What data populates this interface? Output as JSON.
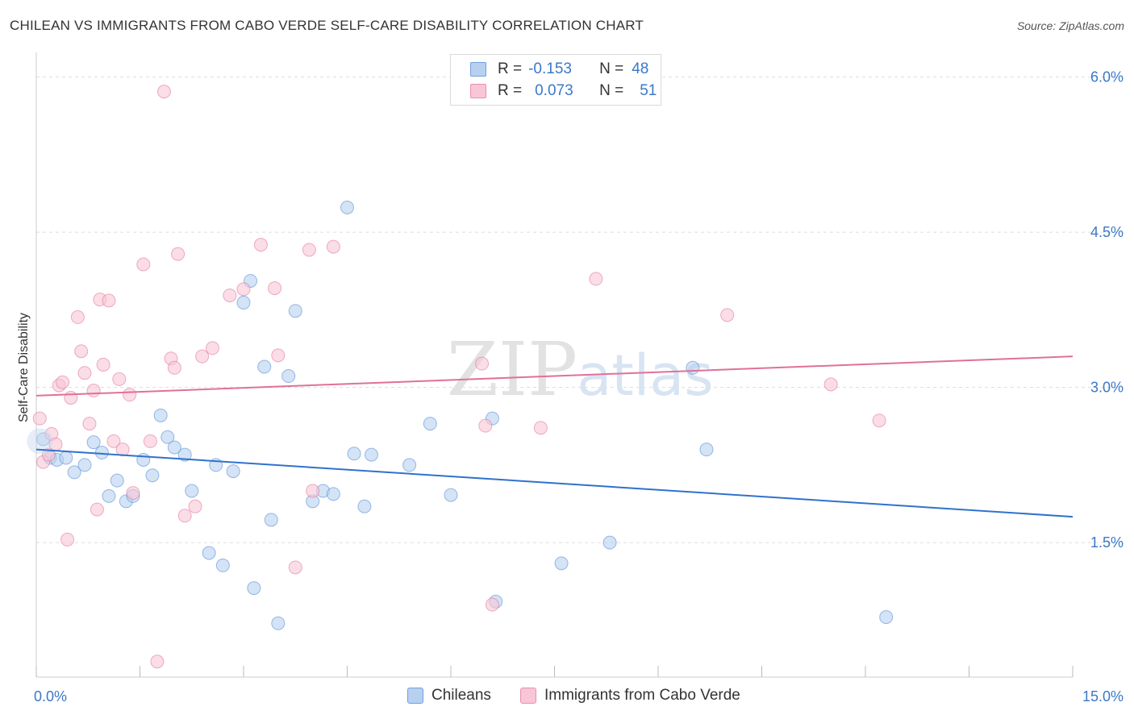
{
  "title": "CHILEAN VS IMMIGRANTS FROM CABO VERDE SELF-CARE DISABILITY CORRELATION CHART",
  "source": "Source: ZipAtlas.com",
  "watermark": {
    "zip": "ZIP",
    "atlas": "atlas"
  },
  "legend_stats": [
    {
      "r_label": "R =",
      "r_value": "-0.153",
      "n_label": "N =",
      "n_value": "48",
      "fill": "#b8d0f0",
      "stroke": "#6fa0dc"
    },
    {
      "r_label": "R =",
      "r_value": "0.073",
      "n_label": "N =",
      "n_value": "51",
      "fill": "#f8c6d6",
      "stroke": "#e890ab"
    }
  ],
  "chart_data": {
    "type": "scatter",
    "title": "CHILEAN VS IMMIGRANTS FROM CABO VERDE SELF-CARE DISABILITY CORRELATION CHART",
    "xlabel": "",
    "ylabel": "Self-Care Disability",
    "xlim": [
      0,
      15
    ],
    "ylim": [
      0.2,
      6.2
    ],
    "x_tick_labels": [
      "0.0%",
      "15.0%"
    ],
    "y_ticks": [
      1.5,
      3.0,
      4.5,
      6.0
    ],
    "y_tick_labels": [
      "1.5%",
      "3.0%",
      "4.5%",
      "6.0%"
    ],
    "grid": "horizontal dashed",
    "series": [
      {
        "name": "Chileans",
        "color": "#4a86d4",
        "fill": "#b8d0f0",
        "trend": [
          [
            0,
            2.4
          ],
          [
            15,
            1.75
          ]
        ],
        "points": [
          [
            0.1,
            2.5
          ],
          [
            0.2,
            2.32
          ],
          [
            0.3,
            2.3
          ],
          [
            0.43,
            2.32
          ],
          [
            0.55,
            2.18
          ],
          [
            0.7,
            2.25
          ],
          [
            0.83,
            2.47
          ],
          [
            0.95,
            2.37
          ],
          [
            1.05,
            1.95
          ],
          [
            1.17,
            2.1
          ],
          [
            1.3,
            1.9
          ],
          [
            1.4,
            1.95
          ],
          [
            1.55,
            2.3
          ],
          [
            1.68,
            2.15
          ],
          [
            1.8,
            2.73
          ],
          [
            1.9,
            2.52
          ],
          [
            2.0,
            2.42
          ],
          [
            2.15,
            2.35
          ],
          [
            2.25,
            2.0
          ],
          [
            2.5,
            1.4
          ],
          [
            2.6,
            2.25
          ],
          [
            2.7,
            1.28
          ],
          [
            2.85,
            2.19
          ],
          [
            3.0,
            3.82
          ],
          [
            3.1,
            4.03
          ],
          [
            3.15,
            1.06
          ],
          [
            3.3,
            3.2
          ],
          [
            3.4,
            1.72
          ],
          [
            3.5,
            0.72
          ],
          [
            3.65,
            3.11
          ],
          [
            3.75,
            3.74
          ],
          [
            4.0,
            1.9
          ],
          [
            4.15,
            2.0
          ],
          [
            4.3,
            1.97
          ],
          [
            4.5,
            4.74
          ],
          [
            4.6,
            2.36
          ],
          [
            4.75,
            1.85
          ],
          [
            4.85,
            2.35
          ],
          [
            5.4,
            2.25
          ],
          [
            5.7,
            2.65
          ],
          [
            6.0,
            1.96
          ],
          [
            6.6,
            2.7
          ],
          [
            6.65,
            0.93
          ],
          [
            7.6,
            1.3
          ],
          [
            8.3,
            1.5
          ],
          [
            9.5,
            3.19
          ],
          [
            9.7,
            2.4
          ],
          [
            12.3,
            0.78
          ]
        ]
      },
      {
        "name": "Immigrants from Cabo Verde",
        "color": "#e07095",
        "fill": "#f8c6d6",
        "trend": [
          [
            0,
            2.92
          ],
          [
            15,
            3.3
          ]
        ],
        "points": [
          [
            0.05,
            2.7
          ],
          [
            0.1,
            2.28
          ],
          [
            0.18,
            2.35
          ],
          [
            0.22,
            2.55
          ],
          [
            0.28,
            2.45
          ],
          [
            0.33,
            3.02
          ],
          [
            0.38,
            3.05
          ],
          [
            0.45,
            1.53
          ],
          [
            0.5,
            2.9
          ],
          [
            0.6,
            3.68
          ],
          [
            0.65,
            3.35
          ],
          [
            0.7,
            3.14
          ],
          [
            0.77,
            2.65
          ],
          [
            0.83,
            2.97
          ],
          [
            0.88,
            1.82
          ],
          [
            0.92,
            3.85
          ],
          [
            0.97,
            3.22
          ],
          [
            1.05,
            3.84
          ],
          [
            1.12,
            2.48
          ],
          [
            1.2,
            3.08
          ],
          [
            1.25,
            2.4
          ],
          [
            1.35,
            2.93
          ],
          [
            1.4,
            1.98
          ],
          [
            1.55,
            4.19
          ],
          [
            1.65,
            2.48
          ],
          [
            1.75,
            0.35
          ],
          [
            1.85,
            5.86
          ],
          [
            1.95,
            3.28
          ],
          [
            2.0,
            3.19
          ],
          [
            2.05,
            4.29
          ],
          [
            2.15,
            1.76
          ],
          [
            2.3,
            1.85
          ],
          [
            2.4,
            3.3
          ],
          [
            2.55,
            3.38
          ],
          [
            2.8,
            3.89
          ],
          [
            3.0,
            3.95
          ],
          [
            3.25,
            4.38
          ],
          [
            3.45,
            3.96
          ],
          [
            3.5,
            3.31
          ],
          [
            3.75,
            1.26
          ],
          [
            3.95,
            4.33
          ],
          [
            4.0,
            2.0
          ],
          [
            4.3,
            4.36
          ],
          [
            6.45,
            3.23
          ],
          [
            6.5,
            2.63
          ],
          [
            6.6,
            0.9
          ],
          [
            7.3,
            2.61
          ],
          [
            8.1,
            4.05
          ],
          [
            10.0,
            3.7
          ],
          [
            11.5,
            3.03
          ],
          [
            12.2,
            2.68
          ]
        ]
      }
    ]
  }
}
